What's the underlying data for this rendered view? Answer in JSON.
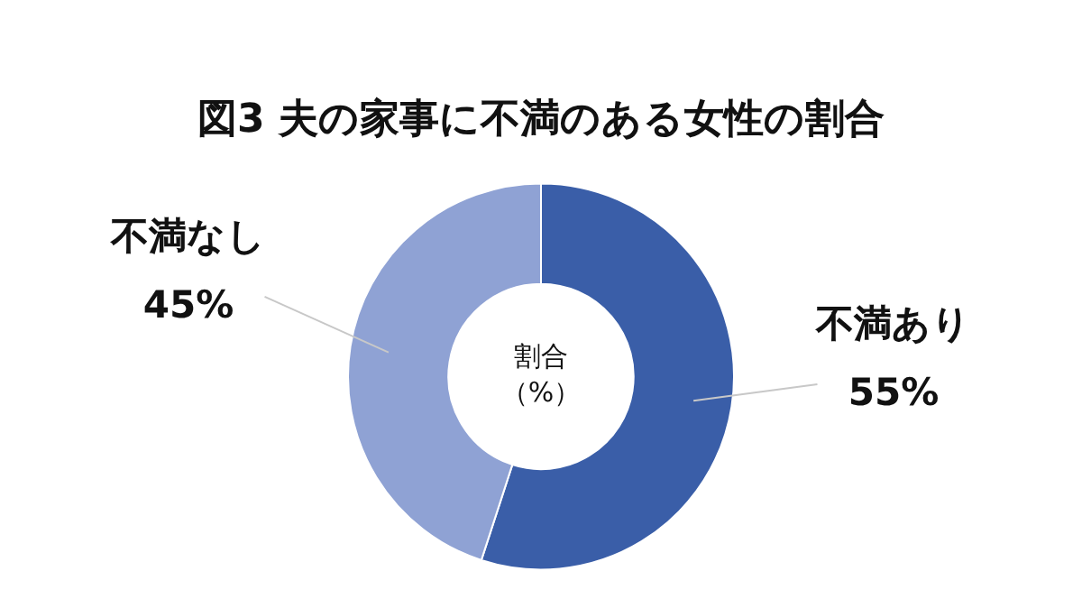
{
  "chart_data": {
    "type": "donut",
    "title": "図3 夫の家事に不満のある女性の割合",
    "categories": [
      "不満あり",
      "不満なし"
    ],
    "values": [
      55,
      45
    ],
    "colors": [
      "#3a5ea8",
      "#8fa2d4"
    ],
    "value_labels": [
      "55%",
      "45%"
    ],
    "annotations": [
      "割合",
      "（%）"
    ],
    "legend": false
  }
}
